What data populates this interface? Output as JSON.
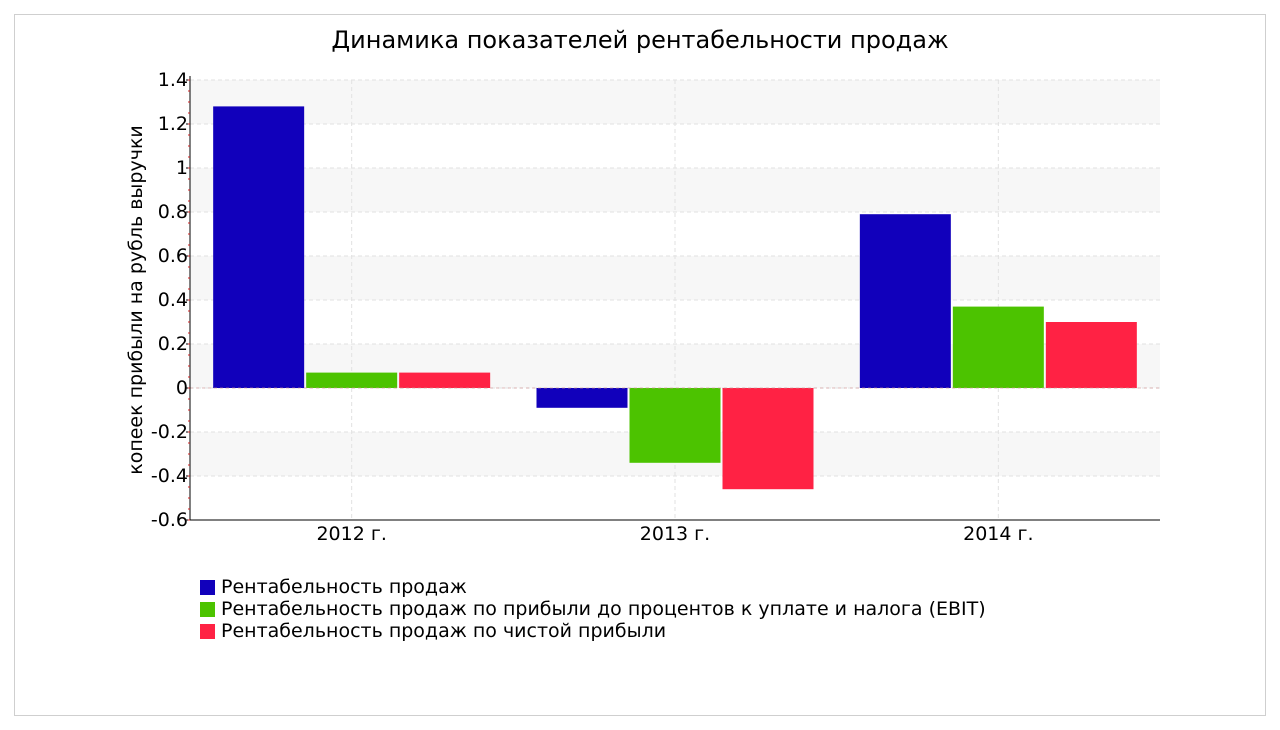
{
  "chart_data": {
    "type": "bar",
    "title": "Динамика показателей рентабельности продаж",
    "xlabel": "",
    "ylabel": "копеек прибыли на рубль выручки",
    "categories": [
      "2012 г.",
      "2013 г.",
      "2014 г."
    ],
    "ylim": [
      -0.6,
      1.4
    ],
    "yticks": [
      "1.4",
      "1.2",
      "1",
      "0.8",
      "0.6",
      "0.4",
      "0.2",
      "0",
      "-0.2",
      "-0.4",
      "-0.6"
    ],
    "grid": true,
    "legend_position": "bottom-left",
    "series": [
      {
        "name": "Рентабельность продаж",
        "color": "#1100bb",
        "values": [
          1.28,
          -0.09,
          0.79
        ]
      },
      {
        "name": "Рентабельность продаж по прибыли до процентов к уплате и налога (EBIT)",
        "color": "#4cc300",
        "values": [
          0.07,
          -0.34,
          0.37
        ]
      },
      {
        "name": "Рентабельность продаж по чистой прибыли",
        "color": "#ff2244",
        "values": [
          0.07,
          -0.46,
          0.3
        ]
      }
    ]
  }
}
